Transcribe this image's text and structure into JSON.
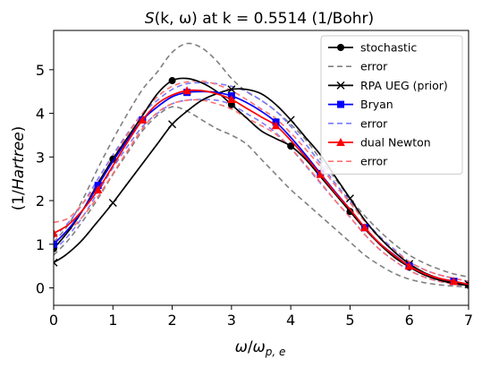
{
  "chart_data": {
    "type": "line",
    "title_parts": {
      "func": "S",
      "args": "(k, ω)",
      "rest": " at k = 0.5514 (1/Bohr)"
    },
    "xlabel": {
      "omega": "ω",
      "sep": "/",
      "omega2": "ω",
      "sub": "p, e"
    },
    "ylabel": {
      "open": "(1/",
      "italic": "Hartree",
      "close": ")"
    },
    "xlim": [
      0,
      7
    ],
    "ylim": [
      -0.4,
      5.9
    ],
    "xticks": [
      0,
      1,
      2,
      3,
      4,
      5,
      6,
      7
    ],
    "yticks": [
      0,
      1,
      2,
      3,
      4,
      5
    ],
    "grid": false,
    "legend_position": "top-right",
    "series": [
      {
        "name": "stochastic",
        "color": "#000000",
        "dash": "",
        "marker": "circle",
        "marker_every": 4,
        "x": [
          0,
          0.25,
          0.5,
          0.75,
          1.0,
          1.25,
          1.5,
          1.75,
          2.0,
          2.25,
          2.5,
          2.75,
          3.0,
          3.25,
          3.5,
          3.75,
          4.0,
          4.25,
          4.5,
          4.75,
          5.0,
          5.25,
          5.5,
          5.75,
          6.0,
          6.25,
          6.5,
          6.75,
          7.0
        ],
        "y": [
          0.9,
          1.3,
          1.8,
          2.4,
          2.95,
          3.45,
          3.95,
          4.45,
          4.75,
          4.8,
          4.7,
          4.5,
          4.2,
          3.9,
          3.6,
          3.42,
          3.25,
          2.95,
          2.55,
          2.15,
          1.75,
          1.35,
          1.0,
          0.7,
          0.48,
          0.3,
          0.18,
          0.1,
          0.06
        ]
      },
      {
        "name": "error",
        "color": "#808080",
        "dash": "6,4",
        "marker": "",
        "x": [
          0,
          0.25,
          0.5,
          0.75,
          1.0,
          1.25,
          1.5,
          1.75,
          2.0,
          2.25,
          2.5,
          2.75,
          3.0,
          3.25,
          3.5,
          3.75,
          4.0,
          4.25,
          4.5,
          4.75,
          5.0,
          5.25,
          5.5,
          5.75,
          6.0,
          6.25,
          6.5,
          6.75,
          7.0
        ],
        "y": [
          1.05,
          1.45,
          2.05,
          2.75,
          3.4,
          4.0,
          4.55,
          4.95,
          5.4,
          5.6,
          5.5,
          5.2,
          4.8,
          4.5,
          4.3,
          4.05,
          3.75,
          3.4,
          2.95,
          2.5,
          2.05,
          1.65,
          1.3,
          1.0,
          0.75,
          0.57,
          0.43,
          0.32,
          0.25
        ]
      },
      {
        "name": "",
        "color": "#808080",
        "dash": "6,4",
        "marker": "",
        "x": [
          0,
          0.25,
          0.5,
          0.75,
          1.0,
          1.25,
          1.5,
          1.75,
          2.0,
          2.25,
          2.5,
          2.75,
          3.0,
          3.25,
          3.5,
          3.75,
          4.0,
          4.25,
          4.5,
          4.75,
          5.0,
          5.25,
          5.5,
          5.75,
          6.0,
          6.25,
          6.5,
          6.75,
          7.0
        ],
        "y": [
          0.75,
          1.1,
          1.55,
          2.05,
          2.6,
          3.1,
          3.6,
          3.95,
          4.15,
          4.05,
          3.85,
          3.65,
          3.5,
          3.3,
          2.95,
          2.6,
          2.25,
          1.95,
          1.65,
          1.35,
          1.05,
          0.75,
          0.52,
          0.33,
          0.2,
          0.12,
          0.07,
          0.04,
          0.02
        ]
      },
      {
        "name": "RPA UEG (prior)",
        "color": "#000000",
        "dash": "",
        "marker": "x",
        "marker_every": 4,
        "x": [
          0,
          0.2,
          0.45,
          0.7,
          1.0,
          1.25,
          1.5,
          1.75,
          2.0,
          2.25,
          2.5,
          2.75,
          3.0,
          3.25,
          3.5,
          3.75,
          4.0,
          4.25,
          4.5,
          4.75,
          5.0,
          5.25,
          5.5,
          5.75,
          6.0,
          6.25,
          6.5,
          6.75,
          7.0
        ],
        "y": [
          0.58,
          0.75,
          1.05,
          1.45,
          1.95,
          2.4,
          2.85,
          3.3,
          3.75,
          4.05,
          4.3,
          4.45,
          4.55,
          4.55,
          4.45,
          4.2,
          3.85,
          3.45,
          3.05,
          2.55,
          2.05,
          1.55,
          1.15,
          0.82,
          0.55,
          0.35,
          0.22,
          0.13,
          0.08
        ]
      },
      {
        "name": "Bryan",
        "color": "#0000ff",
        "dash": "",
        "marker": "square",
        "marker_every": 3,
        "x": [
          0,
          0.25,
          0.5,
          0.75,
          1.0,
          1.25,
          1.5,
          1.75,
          2.0,
          2.25,
          2.5,
          2.75,
          3.0,
          3.25,
          3.5,
          3.75,
          4.0,
          4.25,
          4.5,
          4.75,
          5.0,
          5.25,
          5.5,
          5.75,
          6.0,
          6.25,
          6.5,
          6.75,
          7.0
        ],
        "y": [
          1.0,
          1.35,
          1.8,
          2.35,
          2.9,
          3.4,
          3.85,
          4.15,
          4.38,
          4.48,
          4.5,
          4.48,
          4.4,
          4.25,
          4.05,
          3.8,
          3.45,
          3.05,
          2.62,
          2.2,
          1.8,
          1.38,
          1.02,
          0.75,
          0.5,
          0.33,
          0.22,
          0.15,
          0.08
        ]
      },
      {
        "name": "error",
        "color": "#7a7aff",
        "dash": "6,4",
        "marker": "",
        "x": [
          0,
          0.25,
          0.5,
          0.75,
          1.0,
          1.25,
          1.5,
          1.75,
          2.0,
          2.25,
          2.5,
          2.75,
          3.0,
          3.25,
          3.5,
          3.75,
          4.0,
          4.25,
          4.5,
          4.75,
          5.0,
          5.25,
          5.5,
          5.75,
          6.0,
          6.25,
          6.5,
          6.75,
          7.0
        ],
        "y": [
          1.15,
          1.5,
          1.95,
          2.5,
          3.05,
          3.55,
          4.0,
          4.3,
          4.55,
          4.68,
          4.7,
          4.68,
          4.62,
          4.5,
          4.3,
          4.05,
          3.7,
          3.3,
          2.85,
          2.4,
          1.98,
          1.55,
          1.18,
          0.88,
          0.6,
          0.42,
          0.3,
          0.22,
          0.15
        ]
      },
      {
        "name": "",
        "color": "#7a7aff",
        "dash": "6,4",
        "marker": "",
        "x": [
          0,
          0.25,
          0.5,
          0.75,
          1.0,
          1.25,
          1.5,
          1.75,
          2.0,
          2.25,
          2.5,
          2.75,
          3.0,
          3.25,
          3.5,
          3.75,
          4.0,
          4.25,
          4.5,
          4.75,
          5.0,
          5.25,
          5.5,
          5.75,
          6.0,
          6.25,
          6.5,
          6.75,
          7.0
        ],
        "y": [
          0.85,
          1.2,
          1.65,
          2.2,
          2.75,
          3.25,
          3.7,
          4.0,
          4.22,
          4.3,
          4.32,
          4.3,
          4.2,
          4.0,
          3.8,
          3.55,
          3.2,
          2.8,
          2.4,
          2.0,
          1.62,
          1.22,
          0.88,
          0.62,
          0.4,
          0.25,
          0.15,
          0.09,
          0.04
        ]
      },
      {
        "name": "dual Newton",
        "color": "#ff0000",
        "dash": "",
        "marker": "triangle",
        "marker_every": 3,
        "x": [
          0,
          0.25,
          0.5,
          0.75,
          1.0,
          1.25,
          1.5,
          1.75,
          2.0,
          2.25,
          2.5,
          2.75,
          3.0,
          3.25,
          3.5,
          3.75,
          4.0,
          4.25,
          4.5,
          4.75,
          5.0,
          5.25,
          5.5,
          5.75,
          6.0,
          6.25,
          6.5,
          6.75,
          7.0
        ],
        "y": [
          1.25,
          1.45,
          1.8,
          2.25,
          2.8,
          3.35,
          3.85,
          4.22,
          4.42,
          4.52,
          4.52,
          4.45,
          4.32,
          4.12,
          3.92,
          3.72,
          3.38,
          3.0,
          2.6,
          2.18,
          1.8,
          1.38,
          1.02,
          0.74,
          0.5,
          0.33,
          0.22,
          0.15,
          0.08
        ]
      },
      {
        "name": "error",
        "color": "#ff7070",
        "dash": "6,4",
        "marker": "",
        "x": [
          0,
          0.25,
          0.5,
          0.75,
          1.0,
          1.25,
          1.5,
          1.75,
          2.0,
          2.25,
          2.5,
          2.75,
          3.0,
          3.25,
          3.5,
          3.75,
          4.0,
          4.25,
          4.5,
          4.75,
          5.0,
          5.25,
          5.5,
          5.75,
          6.0,
          6.25,
          6.5,
          6.75,
          7.0
        ],
        "y": [
          1.5,
          1.6,
          1.95,
          2.42,
          2.98,
          3.52,
          4.0,
          4.38,
          4.62,
          4.72,
          4.74,
          4.66,
          4.52,
          4.32,
          4.1,
          3.88,
          3.55,
          3.18,
          2.78,
          2.35,
          1.95,
          1.52,
          1.14,
          0.85,
          0.6,
          0.42,
          0.3,
          0.22,
          0.15
        ]
      },
      {
        "name": "",
        "color": "#ff7070",
        "dash": "6,4",
        "marker": "",
        "x": [
          0,
          0.25,
          0.5,
          0.75,
          1.0,
          1.25,
          1.5,
          1.75,
          2.0,
          2.25,
          2.5,
          2.75,
          3.0,
          3.25,
          3.5,
          3.75,
          4.0,
          4.25,
          4.5,
          4.75,
          5.0,
          5.25,
          5.5,
          5.75,
          6.0,
          6.25,
          6.5,
          6.75,
          7.0
        ],
        "y": [
          1.05,
          1.3,
          1.65,
          2.1,
          2.62,
          3.15,
          3.65,
          4.02,
          4.22,
          4.3,
          4.3,
          4.22,
          4.1,
          3.9,
          3.72,
          3.52,
          3.2,
          2.82,
          2.42,
          2.0,
          1.62,
          1.22,
          0.88,
          0.62,
          0.4,
          0.25,
          0.15,
          0.09,
          0.04
        ]
      }
    ],
    "legend": [
      {
        "label": "stochastic",
        "color": "#000000",
        "dash": "",
        "marker": "circle"
      },
      {
        "label": "error",
        "color": "#808080",
        "dash": "6,4",
        "marker": ""
      },
      {
        "label": "RPA UEG (prior)",
        "color": "#000000",
        "dash": "",
        "marker": "x"
      },
      {
        "label": "Bryan",
        "color": "#0000ff",
        "dash": "",
        "marker": "square"
      },
      {
        "label": "error",
        "color": "#7a7aff",
        "dash": "6,4",
        "marker": ""
      },
      {
        "label": "dual Newton",
        "color": "#ff0000",
        "dash": "",
        "marker": "triangle"
      },
      {
        "label": "error",
        "color": "#ff7070",
        "dash": "6,4",
        "marker": ""
      }
    ]
  }
}
